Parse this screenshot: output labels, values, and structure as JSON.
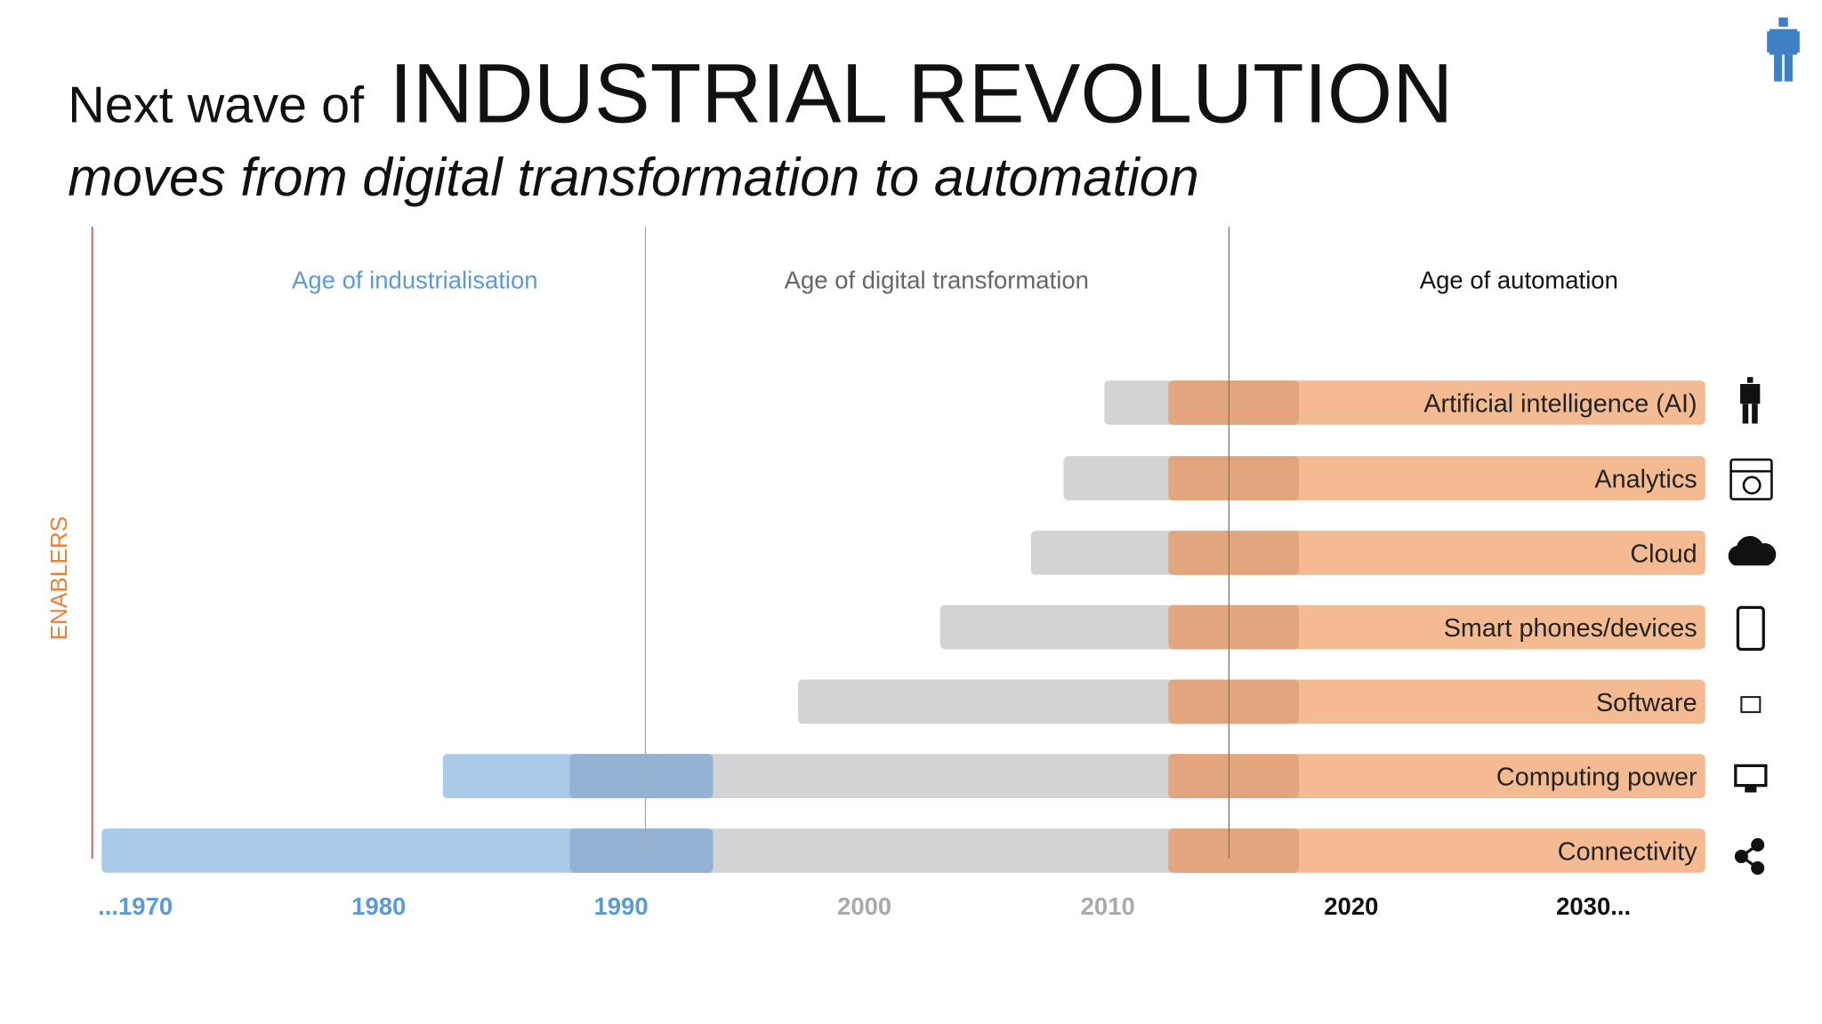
{
  "header": {
    "title_prefix": "Next wave of",
    "title_main": "INDUSTRIAL REVOLUTION",
    "subtitle": "moves from digital transformation to automation"
  },
  "side_label": "ENABLERS",
  "eras": [
    "Age of industrialisation",
    "Age of digital transformation",
    "Age of automation"
  ],
  "enablers": [
    "Artificial intelligence (AI)",
    "Analytics",
    "Cloud",
    "Smart phones/devices",
    "Software",
    "Computing power",
    "Connectivity"
  ],
  "years": [
    "...1970",
    "1980",
    "1990",
    "2000",
    "2010",
    "2020",
    "2030..."
  ]
}
